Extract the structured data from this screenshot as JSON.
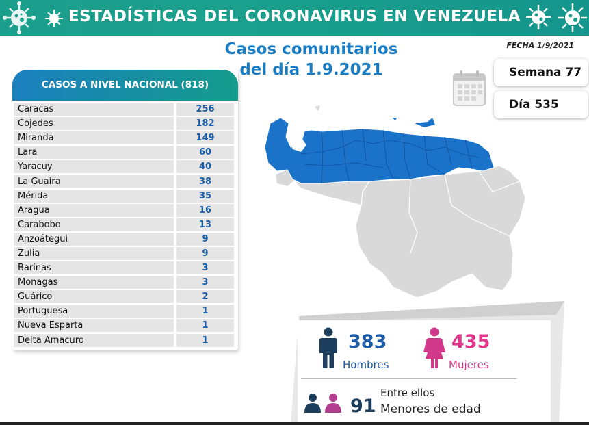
{
  "header": {
    "title": "ESTADÍSTICAS DEL CORONAVIRUS EN VENEZUELA",
    "colors": {
      "banner": "#1a9e8c",
      "accent_blue": "#1a7dc4",
      "pink": "#e0358a"
    }
  },
  "fecha": "FECHA 1/9/2021",
  "main_title": {
    "line1": "Casos comunitarios",
    "line2": "del día 1.9.2021"
  },
  "table": {
    "header": "CASOS A NIVEL NACIONAL (818)",
    "rows": [
      {
        "state": "Caracas",
        "cases": "256"
      },
      {
        "state": "Cojedes",
        "cases": "182"
      },
      {
        "state": "Miranda",
        "cases": "149"
      },
      {
        "state": "Lara",
        "cases": "60"
      },
      {
        "state": "Yaracuy",
        "cases": "40"
      },
      {
        "state": "La Guaira",
        "cases": "38"
      },
      {
        "state": "Mérida",
        "cases": "35"
      },
      {
        "state": "Aragua",
        "cases": "16"
      },
      {
        "state": "Carabobo",
        "cases": "13"
      },
      {
        "state": "Anzoátegui",
        "cases": "9"
      },
      {
        "state": "Zulia",
        "cases": "9"
      },
      {
        "state": "Barinas",
        "cases": "3"
      },
      {
        "state": "Monagas",
        "cases": "3"
      },
      {
        "state": "Guárico",
        "cases": "2"
      },
      {
        "state": "Portuguesa",
        "cases": "1"
      },
      {
        "state": "Nueva Esparta",
        "cases": "1"
      },
      {
        "state": "Delta Amacuro",
        "cases": "1"
      }
    ]
  },
  "semana": "Semana 77",
  "dia": "Día 535",
  "stats": {
    "hombres_num": "383",
    "hombres_label": "Hombres",
    "mujeres_num": "435",
    "mujeres_label": "Mujeres",
    "entre_ellos": "Entre ellos",
    "menores_num": "91",
    "menores_label": "Menores de edad"
  },
  "icons": [
    "virus-icon",
    "calendar-icon",
    "man-icon",
    "woman-icon",
    "children-icon",
    "venezuela-map"
  ]
}
